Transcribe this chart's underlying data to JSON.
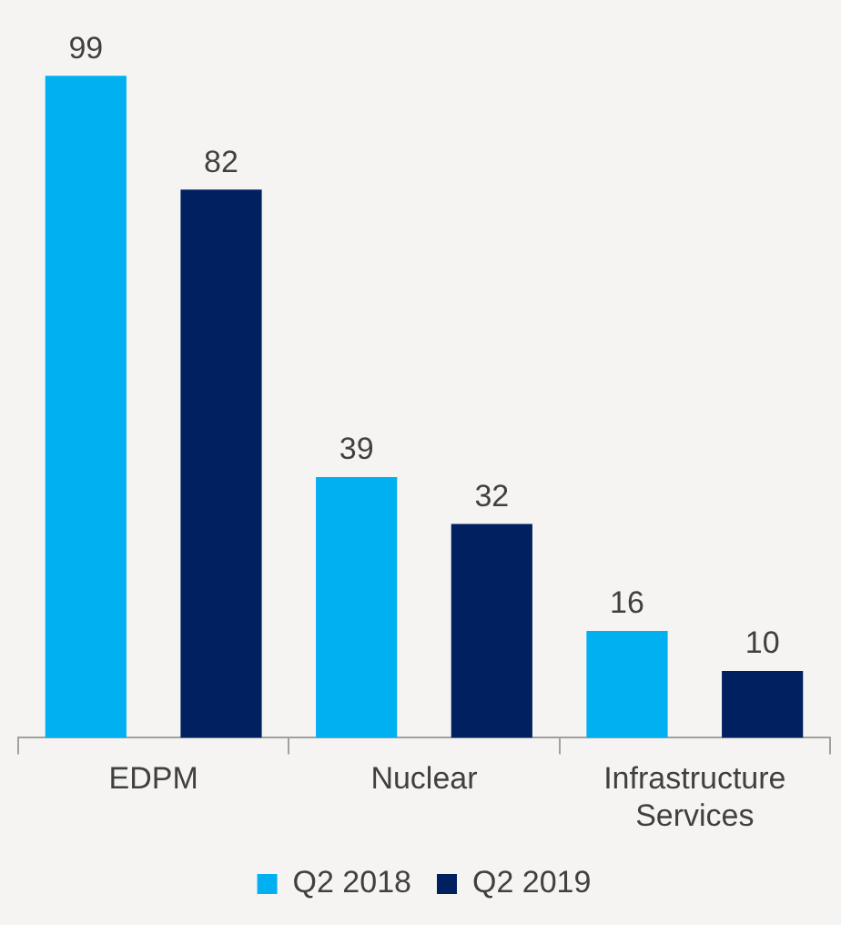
{
  "chart_data": {
    "type": "bar",
    "categories": [
      "EDPM",
      "Nuclear",
      "Infrastructure Services"
    ],
    "series": [
      {
        "name": "Q2 2018",
        "color": "#00b0f0",
        "values": [
          99,
          39,
          16
        ]
      },
      {
        "name": "Q2 2019",
        "color": "#002060",
        "values": [
          82,
          32,
          10
        ]
      }
    ],
    "data_labels": true,
    "legend": "bottom",
    "grid": false
  }
}
